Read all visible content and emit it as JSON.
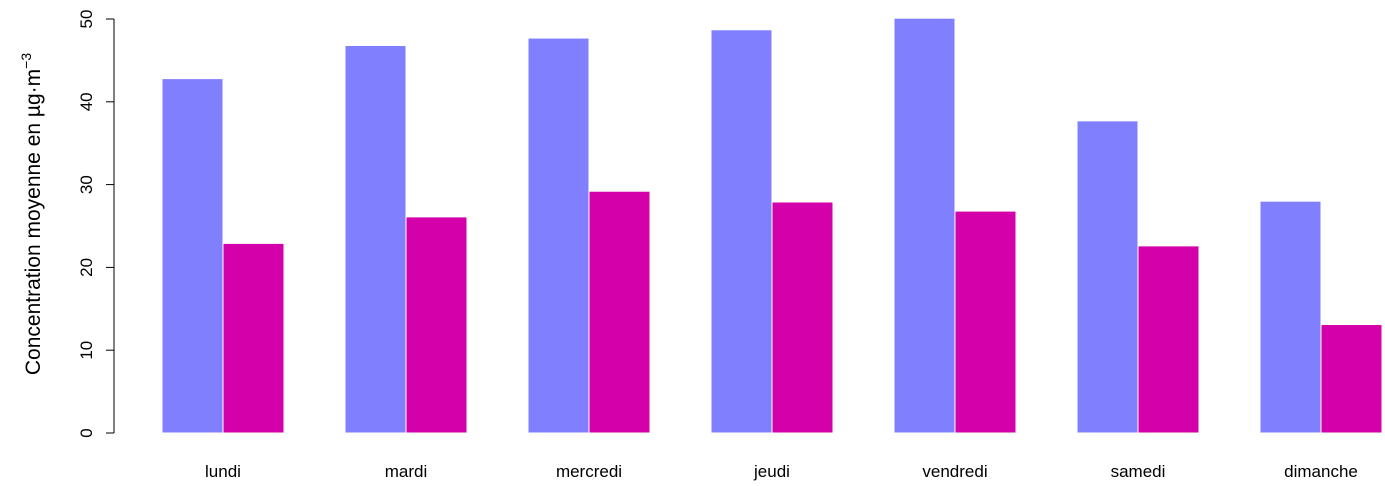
{
  "chart_data": {
    "type": "bar",
    "title": "",
    "xlabel": "",
    "ylabel": {
      "base": "Concentration  moyenne  en  µg·m",
      "superscript": "−3"
    },
    "categories": [
      "lundi",
      "mardi",
      "mercredi",
      "jeudi",
      "vendredi",
      "samedi",
      "dimanche"
    ],
    "series": [
      {
        "color": "#8080ff",
        "values": [
          42.8,
          46.8,
          47.7,
          48.7,
          50.1,
          37.7,
          28.0
        ]
      },
      {
        "color": "#d400aa",
        "values": [
          22.9,
          26.1,
          29.2,
          27.9,
          26.8,
          22.6,
          13.1
        ]
      }
    ],
    "ylim": [
      0,
      50
    ],
    "yticks": [
      0,
      10,
      20,
      30,
      40,
      50
    ],
    "grid": false,
    "legend": "none"
  }
}
